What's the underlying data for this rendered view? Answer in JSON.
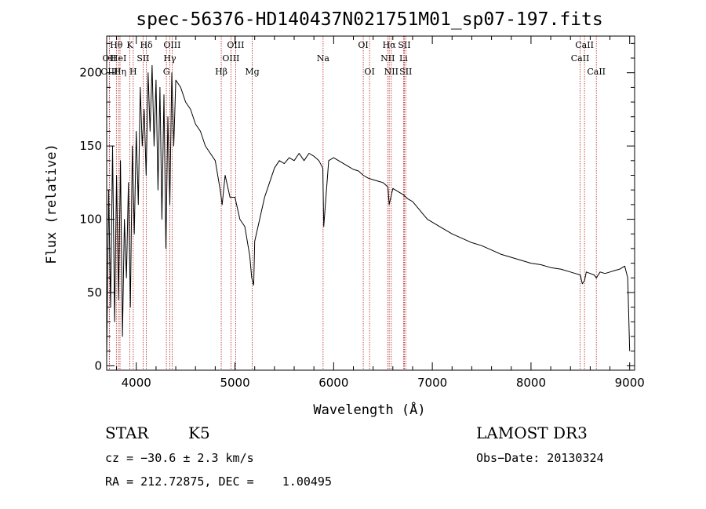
{
  "chart_data": {
    "type": "line",
    "title": "spec-56376-HD140437N021751M01_sp07-197.fits",
    "xlabel": "Wavelength (Å)",
    "ylabel": "Flux (relative)",
    "xlim": [
      3700,
      9050
    ],
    "ylim": [
      -3,
      225
    ],
    "xticks": [
      4000,
      5000,
      6000,
      7000,
      8000,
      9000
    ],
    "yticks": [
      0,
      50,
      100,
      150,
      200
    ],
    "grid": false,
    "line_color": "#000000",
    "marker_color": "#b22222",
    "series": [
      {
        "x": [
          3700,
          3720,
          3740,
          3760,
          3780,
          3800,
          3820,
          3840,
          3860,
          3880,
          3900,
          3920,
          3940,
          3960,
          3980,
          4000,
          4020,
          4040,
          4060,
          4080,
          4100,
          4120,
          4140,
          4160,
          4180,
          4200,
          4220,
          4240,
          4260,
          4280,
          4300,
          4320,
          4340,
          4360,
          4380,
          4400,
          4450,
          4500,
          4550,
          4600,
          4650,
          4700,
          4750,
          4800,
          4850,
          4870,
          4900,
          4950,
          5000,
          5050,
          5100,
          5150,
          5170,
          5190,
          5200,
          5250,
          5300,
          5350,
          5400,
          5450,
          5500,
          5550,
          5600,
          5650,
          5700,
          5750,
          5800,
          5850,
          5890,
          5900,
          5950,
          6000,
          6050,
          6100,
          6150,
          6200,
          6250,
          6300,
          6350,
          6400,
          6450,
          6500,
          6550,
          6563,
          6600,
          6650,
          6700,
          6750,
          6800,
          6850,
          6900,
          6950,
          7000,
          7100,
          7200,
          7300,
          7400,
          7500,
          7600,
          7700,
          7800,
          7900,
          8000,
          8100,
          8200,
          8300,
          8400,
          8450,
          8500,
          8520,
          8542,
          8560,
          8600,
          8640,
          8662,
          8700,
          8750,
          8800,
          8850,
          8900,
          8950,
          8980,
          9000
        ],
        "values": [
          5,
          120,
          40,
          150,
          30,
          130,
          45,
          140,
          20,
          100,
          60,
          125,
          40,
          150,
          90,
          160,
          110,
          190,
          150,
          175,
          130,
          200,
          160,
          205,
          150,
          195,
          120,
          190,
          100,
          185,
          80,
          170,
          110,
          200,
          150,
          195,
          190,
          180,
          175,
          165,
          160,
          150,
          145,
          140,
          120,
          110,
          130,
          115,
          115,
          100,
          95,
          75,
          60,
          55,
          85,
          100,
          115,
          125,
          135,
          140,
          138,
          142,
          140,
          145,
          140,
          145,
          143,
          140,
          135,
          95,
          140,
          142,
          140,
          138,
          136,
          134,
          133,
          130,
          128,
          127,
          126,
          125,
          122,
          110,
          121,
          119,
          117,
          114,
          112,
          108,
          104,
          100,
          98,
          94,
          90,
          87,
          84,
          82,
          79,
          76,
          74,
          72,
          70,
          69,
          67,
          66,
          64,
          63,
          62,
          56,
          58,
          64,
          63,
          62,
          60,
          64,
          63,
          64,
          65,
          66,
          68,
          60,
          10
        ]
      }
    ],
    "annotations": [
      {
        "label": "Hθ",
        "x": 3798,
        "row": 1
      },
      {
        "label": "OII",
        "x": 3727,
        "row": 2
      },
      {
        "label": "OIII",
        "x": 3727,
        "row": 3
      },
      {
        "label": "HeI",
        "x": 3820,
        "row": 2
      },
      {
        "label": "Hη",
        "x": 3835,
        "row": 3
      },
      {
        "label": "K",
        "x": 3934,
        "row": 1
      },
      {
        "label": "H",
        "x": 3969,
        "row": 3
      },
      {
        "label": "SII",
        "x": 4070,
        "row": 2
      },
      {
        "label": "Hδ",
        "x": 4102,
        "row": 1
      },
      {
        "label": "OIII",
        "x": 4363,
        "row": 1
      },
      {
        "label": "Hγ",
        "x": 4340,
        "row": 2
      },
      {
        "label": "G",
        "x": 4305,
        "row": 3
      },
      {
        "label": "Hβ",
        "x": 4861,
        "row": 3
      },
      {
        "label": "OIII",
        "x": 5007,
        "row": 1
      },
      {
        "label": "OIII",
        "x": 4959,
        "row": 2
      },
      {
        "label": "Mg",
        "x": 5175,
        "row": 3
      },
      {
        "label": "Na",
        "x": 5893,
        "row": 2
      },
      {
        "label": "OI",
        "x": 6300,
        "row": 1
      },
      {
        "label": "OI",
        "x": 6364,
        "row": 3
      },
      {
        "label": "Hα",
        "x": 6563,
        "row": 1
      },
      {
        "label": "SII",
        "x": 6717,
        "row": 1
      },
      {
        "label": "NII",
        "x": 6548,
        "row": 2
      },
      {
        "label": "Li",
        "x": 6708,
        "row": 2
      },
      {
        "label": "NII",
        "x": 6584,
        "row": 3
      },
      {
        "label": "SII",
        "x": 6731,
        "row": 3
      },
      {
        "label": "CaII",
        "x": 8542,
        "row": 1
      },
      {
        "label": "CaII",
        "x": 8498,
        "row": 2
      },
      {
        "label": "CaII",
        "x": 8662,
        "row": 3
      }
    ]
  },
  "info": {
    "class": "STAR",
    "subclass": "K5",
    "survey": "LAMOST DR3",
    "cz": "cz = −30.6 ± 2.3 km/s",
    "obs_date": "Obs−Date: 20130324",
    "coords": "RA = 212.72875, DEC =    1.00495"
  }
}
